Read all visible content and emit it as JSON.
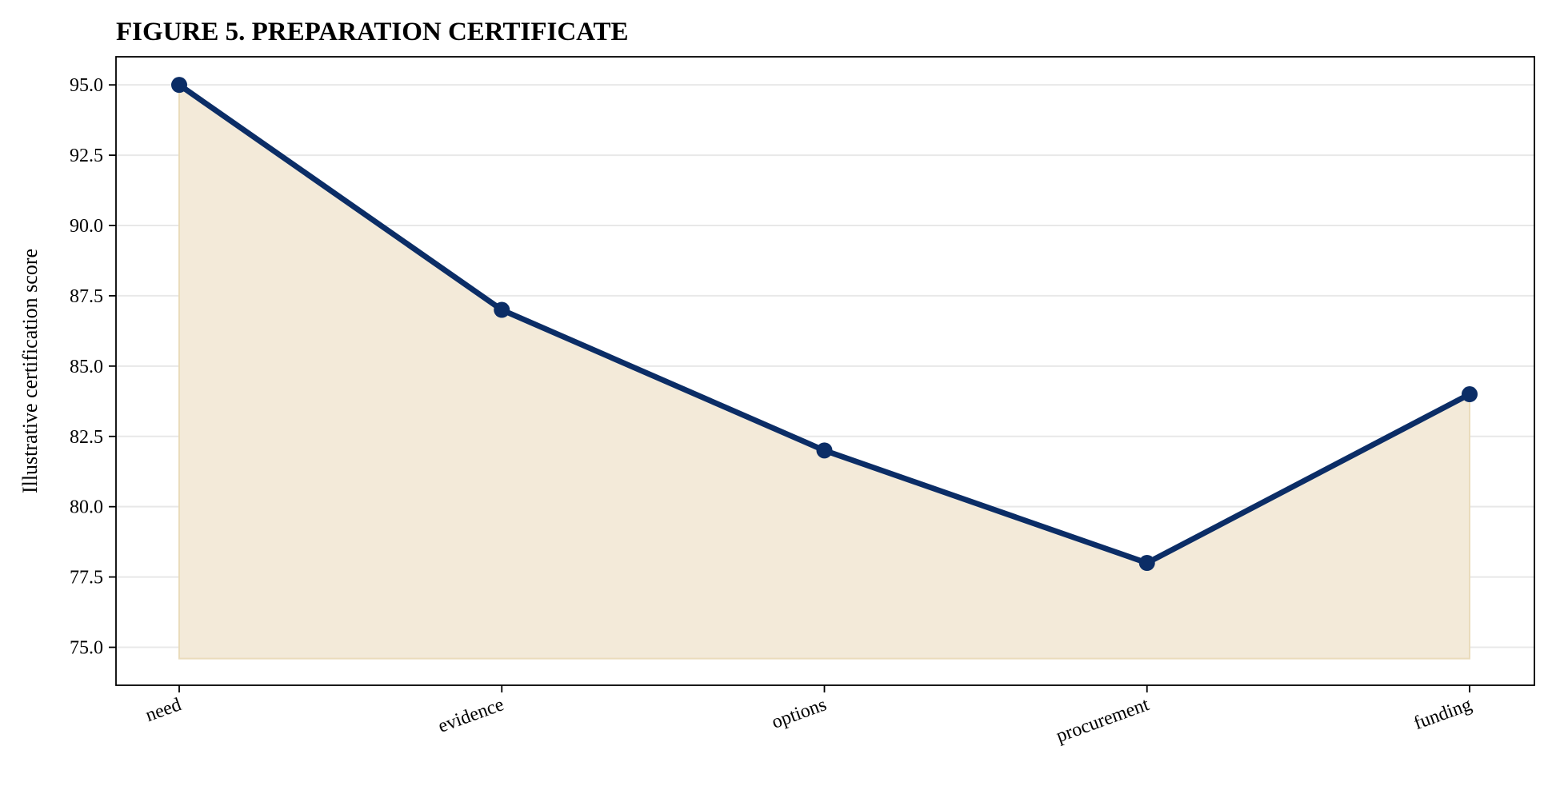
{
  "chart_data": {
    "type": "area",
    "title": "FIGURE 5. PREPARATION CERTIFICATE",
    "xlabel": "",
    "ylabel": "Illustrative certification score",
    "categories": [
      "need",
      "evidence",
      "options",
      "procurement",
      "funding"
    ],
    "series": [
      {
        "values": [
          95.0,
          87.0,
          82.0,
          78.0,
          84.0
        ]
      }
    ],
    "fill_baseline": 74.6,
    "ylim": [
      73.65,
      96.0
    ],
    "yticks": [
      "75.0",
      "77.5",
      "80.0",
      "82.5",
      "85.0",
      "87.5",
      "90.0",
      "92.5",
      "95.0"
    ],
    "grid": "horizontal",
    "legend": "none",
    "colors": {
      "line": "#0b2d66",
      "marker": "#0b2d66",
      "fill": "#f3ead9",
      "fill_edge": "#eadcbc",
      "grid": "#e8e8e8",
      "axes": "#000000"
    }
  }
}
